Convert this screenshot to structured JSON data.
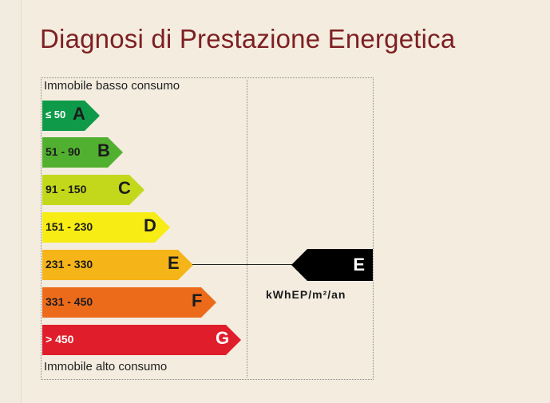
{
  "page": {
    "title": "Diagnosi di Prestazione Energetica"
  },
  "scale": {
    "top_caption": "Immobile basso consumo",
    "bottom_caption": "Immobile alto consumo",
    "unit": "kWhEP/m²/an",
    "classes": [
      {
        "range": "≤ 50",
        "letter": "A",
        "color": "#0e9a48"
      },
      {
        "range": "51 - 90",
        "letter": "B",
        "color": "#52b030"
      },
      {
        "range": "91 - 150",
        "letter": "C",
        "color": "#c3d81a"
      },
      {
        "range": "151 - 230",
        "letter": "D",
        "color": "#f7ec13"
      },
      {
        "range": "231 - 330",
        "letter": "E",
        "color": "#f5b418"
      },
      {
        "range": "331 - 450",
        "letter": "F",
        "color": "#ec6b1b"
      },
      {
        "range": "> 450",
        "letter": "G",
        "color": "#e01d2a"
      }
    ]
  },
  "current": {
    "letter": "E",
    "color": "#000000"
  }
}
